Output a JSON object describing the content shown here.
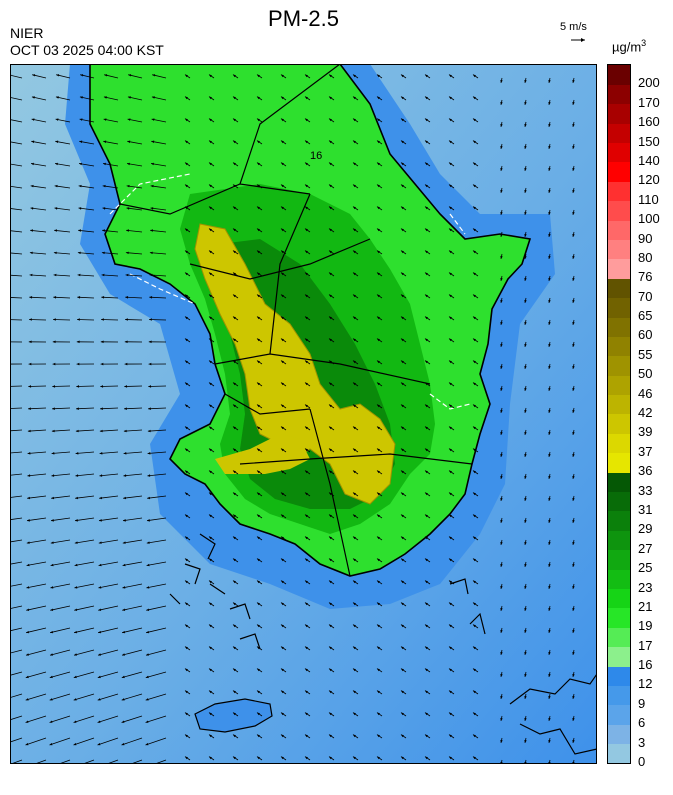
{
  "header": {
    "title": "PM-2.5",
    "org": "NIER",
    "timestamp": "OCT 03 2025 04:00 KST",
    "wind_ref": "5 m/s",
    "unit_base": "µg/m",
    "unit_exp": "3"
  },
  "legend": {
    "bins": [
      {
        "lo": 0,
        "color": "#93c8e1"
      },
      {
        "lo": 3,
        "color": "#7db3e6"
      },
      {
        "lo": 6,
        "color": "#5ba4ea"
      },
      {
        "lo": 9,
        "color": "#4599ea"
      },
      {
        "lo": 12,
        "color": "#2e89ea"
      },
      {
        "lo": 16,
        "color": "#8cf08c"
      },
      {
        "lo": 17,
        "color": "#55ec55"
      },
      {
        "lo": 19,
        "color": "#27e627"
      },
      {
        "lo": 21,
        "color": "#16d416"
      },
      {
        "lo": 23,
        "color": "#13bd13"
      },
      {
        "lo": 25,
        "color": "#11a911"
      },
      {
        "lo": 27,
        "color": "#0e940e"
      },
      {
        "lo": 29,
        "color": "#0b800b"
      },
      {
        "lo": 31,
        "color": "#086c08"
      },
      {
        "lo": 33,
        "color": "#055805"
      },
      {
        "lo": 36,
        "color": "#e6e600"
      },
      {
        "lo": 37,
        "color": "#dcd800"
      },
      {
        "lo": 39,
        "color": "#cdc600"
      },
      {
        "lo": 42,
        "color": "#bdb400"
      },
      {
        "lo": 46,
        "color": "#aea300"
      },
      {
        "lo": 50,
        "color": "#9f9300"
      },
      {
        "lo": 55,
        "color": "#908200"
      },
      {
        "lo": 60,
        "color": "#807200"
      },
      {
        "lo": 65,
        "color": "#716200"
      },
      {
        "lo": 70,
        "color": "#615300"
      },
      {
        "lo": 76,
        "color": "#ff9c9c"
      },
      {
        "lo": 80,
        "color": "#ff8080"
      },
      {
        "lo": 90,
        "color": "#ff6868"
      },
      {
        "lo": 100,
        "color": "#ff4c4c"
      },
      {
        "lo": 110,
        "color": "#ff3030"
      },
      {
        "lo": 120,
        "color": "#ff0000"
      },
      {
        "lo": 140,
        "color": "#e00000"
      },
      {
        "lo": 150,
        "color": "#c40000"
      },
      {
        "lo": 160,
        "color": "#a80000"
      },
      {
        "lo": 170,
        "color": "#8c0000"
      },
      {
        "lo": 200,
        "color": "#6a0000"
      }
    ]
  },
  "map": {
    "colors": {
      "sea_far": "#93c8e1",
      "sea_mid": "#6aaee6",
      "sea_near": "#3e91ea",
      "land_low": "#2ee02e",
      "land_mid": "#12b812",
      "land_high": "#0a8a0a",
      "haze": "#cdc600",
      "haze_dark": "#9f9300",
      "border": "#000000",
      "contour": "#ffffff"
    },
    "contour_label": "16"
  }
}
